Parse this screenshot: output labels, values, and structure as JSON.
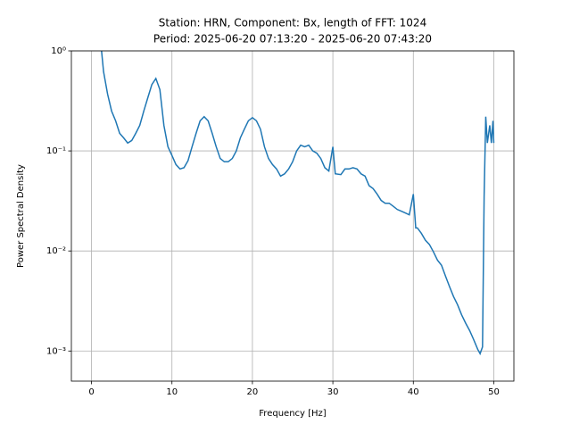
{
  "chart_data": {
    "type": "line",
    "title": [
      "Station: HRN, Component: Bx, length of FFT: 1024",
      "Period: 2025-06-20 07:13:20 - 2025-06-20 07:43:20"
    ],
    "xlabel": "Frequency [Hz]",
    "ylabel": "Power Spectral Density",
    "xlim": [
      -2.5,
      52.5
    ],
    "ylim": [
      0.0005,
      1
    ],
    "ylog": true,
    "grid": true,
    "xticks": [
      0,
      10,
      20,
      30,
      40,
      50
    ],
    "yticks": [
      {
        "value": 0.001,
        "label": "10⁻³"
      },
      {
        "value": 0.01,
        "label": "10⁻²"
      },
      {
        "value": 0.1,
        "label": "10⁻¹"
      },
      {
        "value": 1,
        "label": "10⁰"
      }
    ],
    "x": [
      1.2,
      1.5,
      2,
      2.5,
      3,
      3.5,
      4,
      4.5,
      5,
      5.5,
      6,
      6.5,
      7,
      7.5,
      8,
      8.5,
      9,
      9.5,
      10,
      10.5,
      11,
      11.5,
      12,
      12.5,
      13,
      13.5,
      14,
      14.5,
      15,
      15.5,
      16,
      16.5,
      17,
      17.5,
      18,
      18.5,
      19,
      19.5,
      20,
      20.5,
      21,
      21.5,
      22,
      22.5,
      23,
      23.5,
      24,
      24.5,
      25,
      25.5,
      26,
      26.5,
      27,
      27.5,
      28,
      28.5,
      29,
      29.5,
      30,
      30.3,
      31,
      31.5,
      32,
      32.5,
      33,
      33.5,
      34,
      34.5,
      35,
      35.5,
      36,
      36.5,
      37,
      37.5,
      38,
      38.5,
      39,
      39.5,
      40,
      40.3,
      40.5,
      41,
      41.5,
      42,
      42.5,
      43,
      43.5,
      44,
      44.5,
      45,
      45.5,
      46,
      46.5,
      47,
      47.5,
      48,
      48.3,
      48.6,
      48.8,
      49,
      49.2,
      49.5,
      49.7,
      49.9,
      50
    ],
    "series": [
      {
        "name": "Bx",
        "color": "#1f77b4",
        "values": [
          1.1,
          0.62,
          0.37,
          0.25,
          0.2,
          0.15,
          0.135,
          0.12,
          0.127,
          0.15,
          0.18,
          0.25,
          0.34,
          0.46,
          0.53,
          0.41,
          0.18,
          0.11,
          0.09,
          0.073,
          0.066,
          0.068,
          0.08,
          0.11,
          0.15,
          0.2,
          0.22,
          0.2,
          0.15,
          0.11,
          0.084,
          0.078,
          0.078,
          0.084,
          0.1,
          0.135,
          0.165,
          0.2,
          0.215,
          0.2,
          0.165,
          0.11,
          0.084,
          0.073,
          0.066,
          0.056,
          0.059,
          0.066,
          0.078,
          0.1,
          0.114,
          0.11,
          0.114,
          0.1,
          0.095,
          0.084,
          0.068,
          0.063,
          0.11,
          0.059,
          0.058,
          0.066,
          0.066,
          0.068,
          0.066,
          0.059,
          0.056,
          0.045,
          0.042,
          0.037,
          0.032,
          0.03,
          0.03,
          0.028,
          0.026,
          0.025,
          0.024,
          0.023,
          0.037,
          0.017,
          0.017,
          0.015,
          0.0128,
          0.0116,
          0.0098,
          0.0081,
          0.0072,
          0.0056,
          0.0044,
          0.0035,
          0.0029,
          0.0023,
          0.0019,
          0.0016,
          0.0013,
          0.00104,
          0.00094,
          0.0011,
          0.035,
          0.22,
          0.12,
          0.18,
          0.12,
          0.2,
          0.12
        ]
      }
    ]
  }
}
